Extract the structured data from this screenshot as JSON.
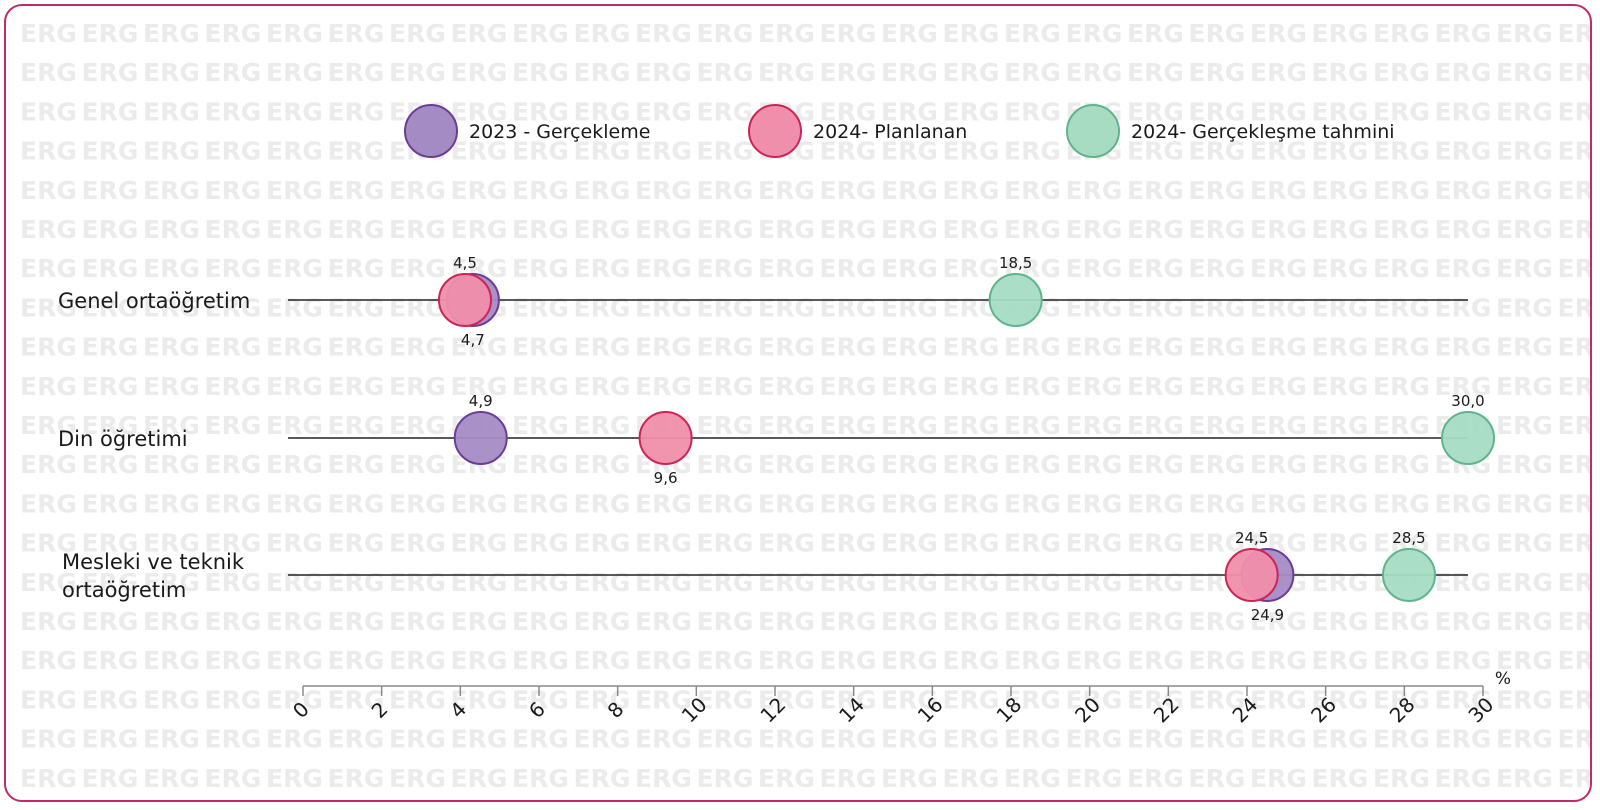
{
  "chart_data": {
    "type": "scatter",
    "unit": "%",
    "xlim": [
      0,
      30
    ],
    "ticks": [
      0,
      2,
      4,
      6,
      8,
      10,
      12,
      14,
      16,
      18,
      20,
      22,
      24,
      26,
      28,
      30
    ],
    "categories": [
      [
        "Genel ortaöğretim"
      ],
      [
        "Din öğretimi"
      ],
      [
        "Mesleki ve teknik",
        "ortaöğretim"
      ]
    ],
    "series": [
      {
        "name": "2023 - Gerçekleme",
        "values": [
          4.7,
          4.9,
          24.9
        ],
        "labels": [
          "4,7",
          "4,9",
          "24,9"
        ],
        "label_pos": [
          "below",
          "above",
          "below"
        ]
      },
      {
        "name": "2024- Planlanan",
        "values": [
          4.5,
          9.6,
          24.5
        ],
        "labels": [
          "4,5",
          "9,6",
          "24,5"
        ],
        "label_pos": [
          "above",
          "below",
          "above"
        ]
      },
      {
        "name": "2024- Gerçekleşme tahmini",
        "values": [
          18.5,
          30.0,
          28.5
        ],
        "labels": [
          "18,5",
          "30,0",
          "28,5"
        ],
        "label_pos": [
          "above",
          "above",
          "above"
        ]
      }
    ],
    "colors": [
      {
        "fill": "#a58bc4",
        "stroke": "#6a3d96"
      },
      {
        "fill": "#f08fab",
        "stroke": "#cc2457"
      },
      {
        "fill": "#a7dcc3",
        "stroke": "#5fb48d"
      }
    ],
    "legend_position": "top",
    "grid": false,
    "watermark_text": "ERG"
  }
}
